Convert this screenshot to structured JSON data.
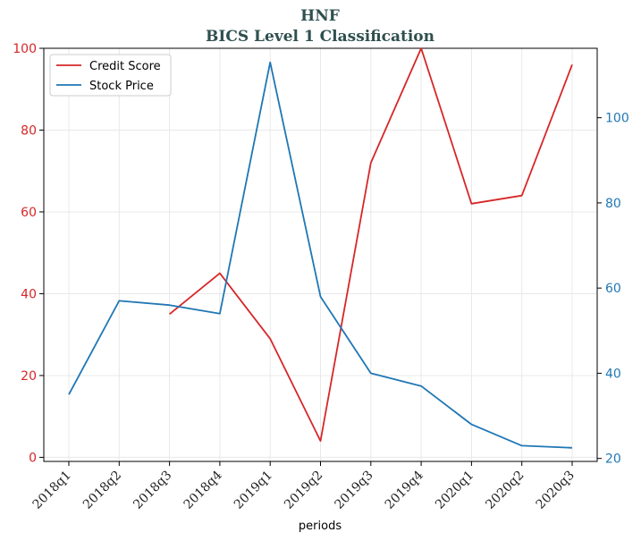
{
  "chart_data": {
    "type": "line",
    "title": "HNF",
    "subtitle": "BICS Level 1 Classification",
    "xlabel": "periods",
    "categories": [
      "2018q1",
      "2018q2",
      "2018q3",
      "2018q4",
      "2019q1",
      "2019q2",
      "2019q3",
      "2019q4",
      "2020q1",
      "2020q2",
      "2020q3"
    ],
    "series": [
      {
        "name": "Credit Score",
        "axis": "left",
        "color": "#d62728",
        "values": [
          null,
          null,
          35,
          45,
          29,
          4,
          72,
          100,
          62,
          64,
          96
        ]
      },
      {
        "name": "Stock Price",
        "axis": "right",
        "color": "#1f77b4",
        "values": [
          35,
          57,
          56,
          54,
          113,
          58,
          40,
          37,
          28,
          23,
          22.5
        ]
      }
    ],
    "ylim_left": [
      -1,
      100
    ],
    "yticks_left": [
      0,
      20,
      40,
      60,
      80,
      100
    ],
    "ylim_right": [
      19.3,
      116.3
    ],
    "yticks_right": [
      20,
      40,
      60,
      80,
      100
    ],
    "grid": true,
    "legend_position": "upper-left"
  }
}
